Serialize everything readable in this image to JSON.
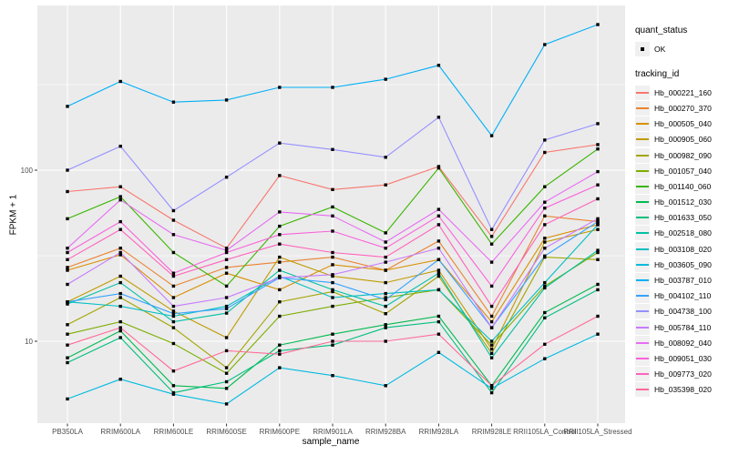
{
  "colors": {
    "panel_background": "#EBEBEB",
    "grid": "#FFFFFF",
    "tick_text": "#4D4D4D",
    "axis_tick_mark": "#333333",
    "marker": "#000000",
    "legend_key_background": "#F0F0F0"
  },
  "axes": {
    "x_title": "sample_name",
    "y_title": "FPKM + 1",
    "y_tick_labels": [
      "100",
      "10"
    ]
  },
  "legend": {
    "quant_status_title": "quant_status",
    "quant_status_items": [
      {
        "label": "OK",
        "marker": "black-square-icon"
      }
    ],
    "tracking_title": "tracking_id"
  },
  "chart_data": {
    "type": "line",
    "title": "",
    "xlabel": "sample_name",
    "ylabel": "FPKM + 1",
    "y_scale": "log10",
    "ylim": [
      3.2,
      900
    ],
    "y_major_gridlines": [
      10,
      100
    ],
    "y_minor_gridlines": [
      31.6,
      316
    ],
    "grid": true,
    "marker": "black-square",
    "legend_position": "right",
    "categories": [
      "PB350LA",
      "RRIM600LA",
      "RRIM600LE",
      "RRIM600SE",
      "RRIM600PE",
      "RRIM901LA",
      "RRIM928BA",
      "RRIM928LA",
      "RRIM928LE",
      "RRII105LA_Control",
      "RRII105LA_Stressed"
    ],
    "series": [
      {
        "name": "Hb_000221_160",
        "color": "#F8766D",
        "values": [
          75,
          80,
          51,
          35,
          93,
          77,
          82,
          105,
          41,
          127,
          141
        ]
      },
      {
        "name": "Hb_000270_370",
        "color": "#EA8331",
        "values": [
          27,
          35,
          21,
          27,
          29,
          31,
          26,
          38.5,
          14,
          54,
          50
        ]
      },
      {
        "name": "Hb_000505_040",
        "color": "#D89000",
        "values": [
          26,
          32,
          18,
          25,
          20,
          28,
          26,
          30,
          13,
          40,
          48
        ]
      },
      {
        "name": "Hb_000905_060",
        "color": "#C09B00",
        "values": [
          17,
          24,
          15,
          10.5,
          31,
          24,
          22,
          26,
          9,
          38,
          45
        ]
      },
      {
        "name": "Hb_000982_090",
        "color": "#A3A500",
        "values": [
          12.5,
          18,
          12,
          7,
          17,
          19.5,
          14.5,
          24,
          8.5,
          31,
          30
        ]
      },
      {
        "name": "Hb_001057_040",
        "color": "#7CAE00",
        "values": [
          11,
          13,
          9.7,
          6.5,
          14,
          16,
          18,
          20,
          9.5,
          21,
          33
        ]
      },
      {
        "name": "Hb_001140_060",
        "color": "#39B600",
        "values": [
          52,
          70,
          33,
          21,
          47,
          61,
          43,
          103,
          37,
          80,
          133
        ]
      },
      {
        "name": "Hb_001512_030",
        "color": "#00BB4E",
        "values": [
          8,
          11.5,
          5.5,
          5.3,
          9.5,
          11,
          12.5,
          14,
          5.5,
          14.7,
          21.5
        ]
      },
      {
        "name": "Hb_001633_050",
        "color": "#00BF7D",
        "values": [
          7.5,
          10.5,
          5,
          5.8,
          8.8,
          9.5,
          12,
          13,
          5,
          13.7,
          20
        ]
      },
      {
        "name": "Hb_002518_080",
        "color": "#00C1A3",
        "values": [
          16.5,
          22,
          13,
          14.6,
          26,
          20,
          16,
          25,
          8,
          20.5,
          34
        ]
      },
      {
        "name": "Hb_003108_020",
        "color": "#00BFC4",
        "values": [
          17,
          16,
          14,
          16,
          24,
          18,
          19,
          20,
          10,
          22,
          48
        ]
      },
      {
        "name": "Hb_003605_090",
        "color": "#00BAE0",
        "values": [
          4.6,
          6,
          4.9,
          4.3,
          7,
          6.3,
          5.5,
          8.6,
          5.3,
          7.9,
          11
        ]
      },
      {
        "name": "Hb_003787_010",
        "color": "#00B0F6",
        "values": [
          236,
          330,
          250,
          257,
          305,
          305,
          340,
          410,
          159,
          542,
          710
        ]
      },
      {
        "name": "Hb_004102_110",
        "color": "#35A2FF",
        "values": [
          17,
          19,
          14.5,
          15.5,
          23.5,
          22,
          17.5,
          30,
          12,
          31.5,
          50
        ]
      },
      {
        "name": "Hb_004738_100",
        "color": "#9590FF",
        "values": [
          100,
          138,
          58,
          91,
          144,
          132,
          119,
          204,
          45,
          150,
          187
        ]
      },
      {
        "name": "Hb_005784_110",
        "color": "#C77CFF",
        "values": [
          21.5,
          33,
          16,
          18,
          23.5,
          24.5,
          29,
          35,
          12,
          35,
          52
        ]
      },
      {
        "name": "Hb_008092_040",
        "color": "#E76BF3",
        "values": [
          35,
          67,
          42,
          34,
          57,
          54,
          38,
          59,
          29,
          65,
          98
        ]
      },
      {
        "name": "Hb_009051_030",
        "color": "#FA62DB",
        "values": [
          33,
          50,
          25,
          33,
          42,
          44,
          35,
          54,
          21,
          60,
          82
        ]
      },
      {
        "name": "Hb_009773_020",
        "color": "#FF62BC",
        "values": [
          30,
          45,
          24,
          30,
          37,
          33,
          31,
          48,
          16,
          48,
          68
        ]
      },
      {
        "name": "Hb_035398_020",
        "color": "#FF6A98",
        "values": [
          9.5,
          12,
          6.7,
          8.8,
          8.4,
          10,
          10,
          11,
          5.5,
          9.6,
          14
        ]
      }
    ]
  }
}
